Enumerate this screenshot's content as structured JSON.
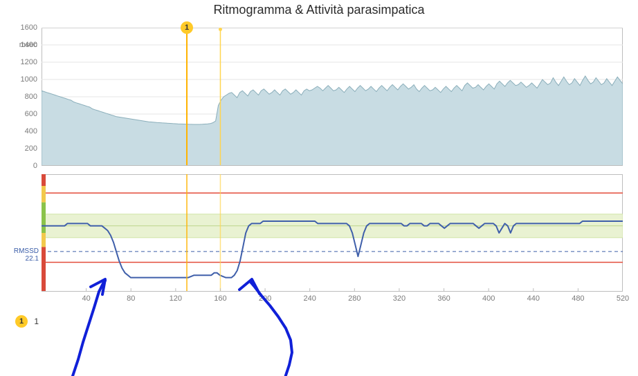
{
  "title": "Ritmogramma & Attività parasimpatica",
  "colors": {
    "background": "#ffffff",
    "grid": "#e6e6e6",
    "axis": "#bdbdbd",
    "tick_text": "#7a7a7a",
    "top_area_fill": "#c8dce3",
    "top_area_stroke": "#8aaeba",
    "marker_line_strong": "#ffb300",
    "marker_line_light": "#ffd54f",
    "marker_fill": "#ffca28",
    "bottom_line": "#3f5faa",
    "rmssd_dash": "#3a5da8",
    "red_line": "#e34b3a",
    "green_band": "#e9f2d2",
    "green_band_border": "#cfe3a6",
    "side_red": "#d94a3a",
    "side_yellow": "#f2c94c",
    "side_green": "#8bc34a",
    "annotation": "#1020d8"
  },
  "top_chart": {
    "type": "area",
    "y_unit": "msec",
    "ylim": [
      0,
      1600
    ],
    "ytick_step": 200,
    "yticks": [
      0,
      200,
      400,
      600,
      800,
      1000,
      1200,
      1400,
      1600
    ],
    "xlim": [
      0,
      520
    ],
    "xtick_step": 40,
    "area_values": [
      870,
      860,
      850,
      840,
      830,
      820,
      810,
      800,
      790,
      780,
      770,
      760,
      740,
      730,
      720,
      710,
      700,
      690,
      680,
      660,
      650,
      640,
      630,
      620,
      610,
      600,
      590,
      580,
      570,
      565,
      560,
      555,
      550,
      545,
      540,
      535,
      530,
      525,
      520,
      515,
      510,
      508,
      505,
      502,
      500,
      498,
      496,
      494,
      492,
      490,
      488,
      486,
      485,
      484,
      483,
      482,
      481,
      480,
      480,
      480,
      482,
      484,
      486,
      490,
      500,
      520,
      700,
      760,
      800,
      820,
      840,
      850,
      820,
      790,
      850,
      870,
      840,
      810,
      860,
      880,
      850,
      820,
      870,
      890,
      860,
      830,
      850,
      880,
      850,
      820,
      870,
      890,
      860,
      830,
      850,
      880,
      850,
      820,
      870,
      890,
      870,
      880,
      900,
      920,
      900,
      870,
      900,
      930,
      900,
      870,
      880,
      910,
      880,
      850,
      890,
      920,
      890,
      860,
      900,
      930,
      900,
      870,
      890,
      920,
      890,
      860,
      900,
      930,
      900,
      870,
      910,
      940,
      910,
      880,
      920,
      950,
      920,
      890,
      910,
      940,
      890,
      860,
      900,
      930,
      900,
      870,
      880,
      910,
      880,
      850,
      890,
      920,
      890,
      860,
      900,
      930,
      900,
      870,
      930,
      960,
      930,
      900,
      910,
      940,
      910,
      880,
      920,
      950,
      920,
      890,
      950,
      980,
      950,
      920,
      960,
      990,
      960,
      930,
      940,
      970,
      940,
      910,
      930,
      960,
      930,
      900,
      950,
      1000,
      970,
      940,
      960,
      1020,
      970,
      930,
      980,
      1030,
      980,
      940,
      960,
      1010,
      970,
      930,
      990,
      1040,
      990,
      950,
      970,
      1020,
      980,
      940,
      960,
      1010,
      970,
      930,
      980,
      1030,
      990,
      950
    ],
    "markers": [
      {
        "x": 130,
        "label": "1",
        "line_color": "#ffb300",
        "badge": true
      },
      {
        "x": 160,
        "label": "",
        "line_color": "#ffd54f",
        "badge": false
      }
    ]
  },
  "bottom_chart": {
    "type": "line",
    "xlim": [
      0,
      520
    ],
    "display_y_range": [
      5,
      55
    ],
    "xticks": [
      40,
      80,
      120,
      160,
      200,
      240,
      280,
      320,
      360,
      400,
      440,
      480,
      520
    ],
    "rmssd_label": "RMSSD",
    "rmssd_value": "22.1",
    "rmssd_y": 22.1,
    "red_lines_y": [
      47,
      17.5
    ],
    "green_band_y": [
      28,
      38
    ],
    "green_band_line_y": 33,
    "side_bands": [
      {
        "color": "#d94a3a",
        "from": 50,
        "to": 55
      },
      {
        "color": "#f2c94c",
        "from": 43,
        "to": 50
      },
      {
        "color": "#8bc34a",
        "from": 30,
        "to": 43
      },
      {
        "color": "#f2c94c",
        "from": 24,
        "to": 30
      },
      {
        "color": "#d94a3a",
        "from": 5,
        "to": 24
      }
    ],
    "line_values": [
      33,
      33,
      33,
      33,
      33,
      33,
      33,
      33,
      33,
      34,
      34,
      34,
      34,
      34,
      34,
      34,
      34,
      33,
      33,
      33,
      33,
      33,
      32,
      31,
      29,
      26,
      22,
      18,
      15,
      13,
      12,
      11,
      11,
      11,
      11,
      11,
      11,
      11,
      11,
      11,
      11,
      11,
      11,
      11,
      11,
      11,
      11,
      11,
      11,
      11,
      11,
      11,
      11.5,
      12,
      12,
      12,
      12,
      12,
      12,
      12,
      13,
      13,
      12,
      11.5,
      11,
      11,
      11,
      12,
      14,
      18,
      24,
      30,
      33,
      34,
      34,
      34,
      34,
      35,
      35,
      35,
      35,
      35,
      35,
      35,
      35,
      35,
      35,
      35,
      35,
      35,
      35,
      35,
      35,
      35,
      35,
      35,
      34,
      34,
      34,
      34,
      34,
      34,
      34,
      34,
      34,
      34,
      34,
      33,
      30,
      25,
      20,
      25,
      30,
      33,
      34,
      34,
      34,
      34,
      34,
      34,
      34,
      34,
      34,
      34,
      34,
      34,
      33,
      33,
      34,
      34,
      34,
      34,
      34,
      33,
      33,
      34,
      34,
      34,
      34,
      33,
      32,
      33,
      34,
      34,
      34,
      34,
      34,
      34,
      34,
      34,
      34,
      33,
      32,
      33,
      34,
      34,
      34,
      34,
      33,
      30,
      32,
      34,
      33,
      30,
      33,
      34,
      34,
      34,
      34,
      34,
      34,
      34,
      34,
      34,
      34,
      34,
      34,
      34,
      34,
      34,
      34,
      34,
      34,
      34,
      34,
      34,
      34,
      34,
      35,
      35,
      35,
      35,
      35,
      35,
      35,
      35,
      35,
      35,
      35,
      35,
      35,
      35,
      35
    ]
  },
  "legend": {
    "items": [
      {
        "badge": "1",
        "text": "1"
      }
    ]
  },
  "annotations": [
    {
      "type": "freehand",
      "points": [
        [
          105,
          544
        ],
        [
          113,
          520
        ],
        [
          120,
          495
        ],
        [
          128,
          470
        ],
        [
          136,
          445
        ],
        [
          143,
          422
        ],
        [
          149,
          410
        ],
        [
          152,
          406
        ]
      ]
    },
    {
      "type": "arrow_head",
      "points": [
        [
          131,
          415
        ],
        [
          152,
          404
        ],
        [
          148,
          426
        ]
      ]
    },
    {
      "type": "freehand",
      "points": [
        [
          412,
          546
        ],
        [
          418,
          528
        ],
        [
          422,
          510
        ],
        [
          420,
          492
        ],
        [
          413,
          475
        ],
        [
          402,
          458
        ],
        [
          390,
          442
        ],
        [
          378,
          428
        ],
        [
          368,
          415
        ],
        [
          362,
          408
        ]
      ]
    },
    {
      "type": "arrow_head",
      "points": [
        [
          346,
          419
        ],
        [
          364,
          404
        ],
        [
          375,
          425
        ]
      ]
    }
  ]
}
